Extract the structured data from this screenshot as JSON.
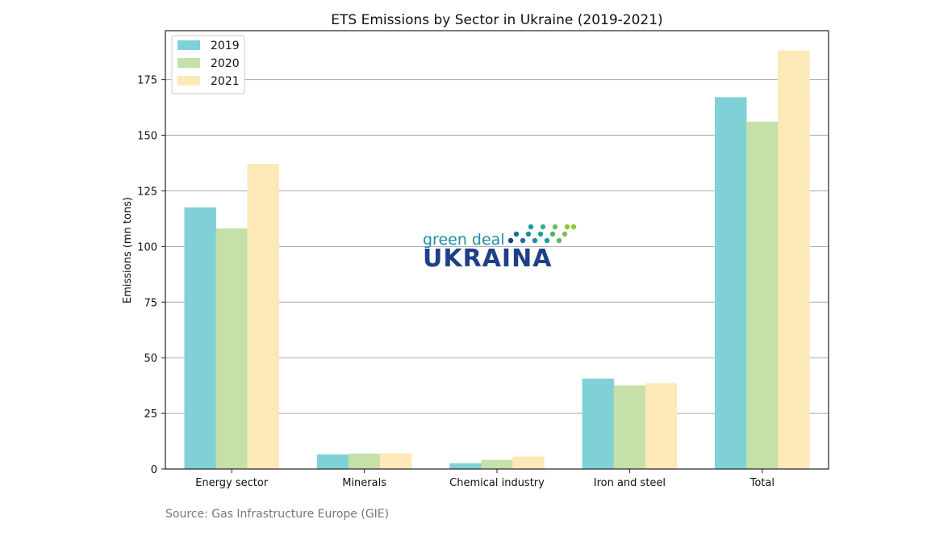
{
  "chart_data": {
    "type": "bar",
    "title": "ETS Emissions by Sector in Ukraine (2019-2021)",
    "ylabel": "Emissions (mn tons)",
    "xlabel": "",
    "categories": [
      "Energy sector",
      "Minerals",
      "Chemical industry",
      "Iron and steel",
      "Total"
    ],
    "series": [
      {
        "name": "2019",
        "color": "#80d0d8",
        "values": [
          117.5,
          6.5,
          2.5,
          40.5,
          167
        ]
      },
      {
        "name": "2020",
        "color": "#c5e0a8",
        "values": [
          108,
          6.8,
          4,
          37.5,
          156
        ]
      },
      {
        "name": "2021",
        "color": "#fde8b8",
        "values": [
          137,
          7,
          5.5,
          38.5,
          188
        ]
      }
    ],
    "ylim": [
      0,
      197
    ],
    "yticks": [
      0,
      25,
      50,
      75,
      100,
      125,
      150,
      175
    ],
    "grid": "horizontal",
    "legend_position": "top-left"
  },
  "logo": {
    "line1": "green deal",
    "line2": "UKRAINA"
  },
  "source": "Source: Gas Infrastructure Europe (GIE)"
}
